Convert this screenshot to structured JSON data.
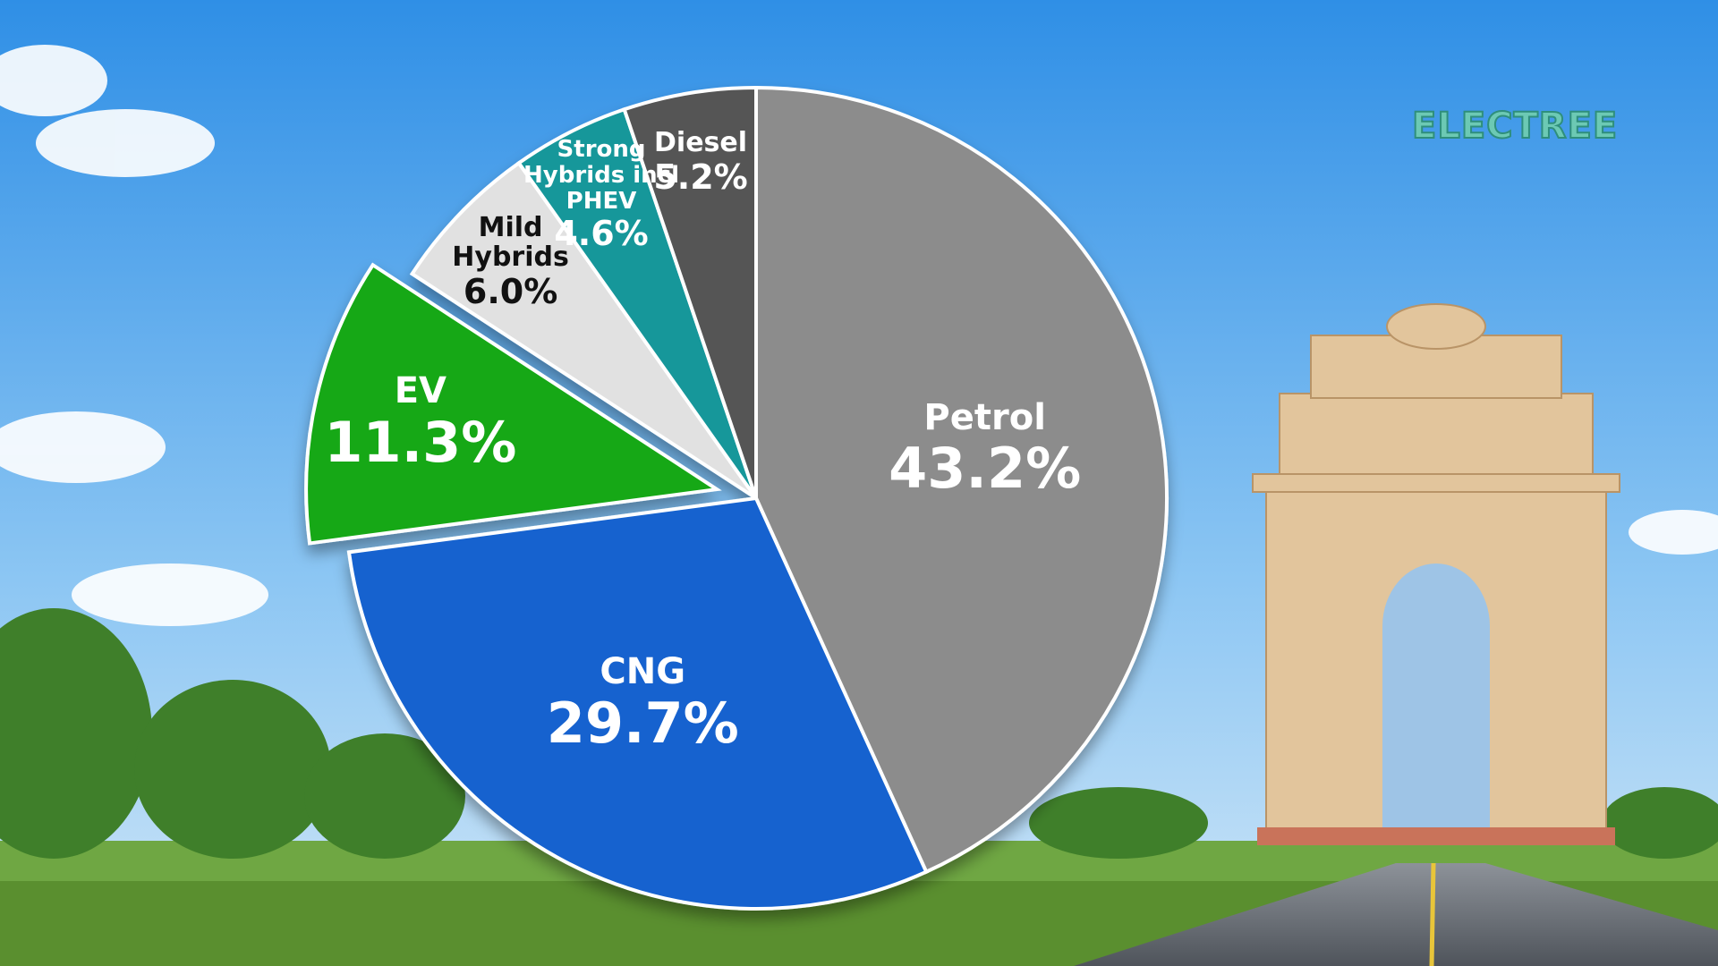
{
  "logo": "ELECTREE",
  "chart_data": {
    "type": "pie",
    "categories": [
      "Petrol",
      "CNG",
      "EV",
      "Mild Hybrids",
      "Strong Hybrids incl PHEV",
      "Diesel"
    ],
    "values": [
      43.2,
      29.7,
      11.3,
      6.0,
      4.6,
      5.2
    ],
    "value_labels": [
      "43.2%",
      "29.7%",
      "11.3%",
      "6.0%",
      "4.6%",
      "5.2%"
    ],
    "colors": [
      "#8c8c8c",
      "#1262cf",
      "#16a816",
      "#e1e1e1",
      "#17979a",
      "#545454"
    ],
    "exploded": "EV"
  }
}
